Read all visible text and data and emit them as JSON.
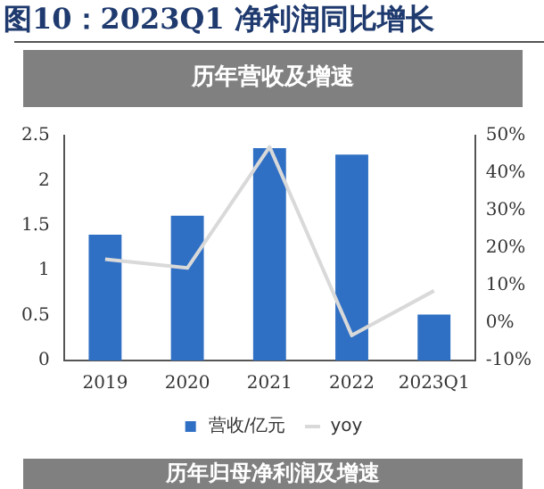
{
  "chart_data": {
    "type": "bar",
    "title": "图10：2023Q1 净利润同比增长",
    "subtitle": "历年营收及增速",
    "categories": [
      "2019",
      "2020",
      "2021",
      "2022",
      "2023Q1"
    ],
    "series": [
      {
        "name": "营收/亿元",
        "color": "#3070c4",
        "values": [
          1.4,
          1.61,
          2.36,
          2.29,
          0.51
        ]
      },
      {
        "name": "yoy",
        "type": "line",
        "axis": "y2",
        "color": "#d9d9d9",
        "values": [
          17,
          14.7,
          47,
          -3.3,
          8.6
        ]
      }
    ],
    "ylim": [
      0,
      2.5
    ],
    "yticks": [
      0,
      0.5,
      1,
      1.5,
      2,
      2.5
    ],
    "y2lim": [
      -10,
      50
    ],
    "y2ticks": [
      {
        "value": -10,
        "label": "-10%"
      },
      {
        "value": 0,
        "label": "0%"
      },
      {
        "value": 10,
        "label": "10%"
      },
      {
        "value": 20,
        "label": "20%"
      },
      {
        "value": 30,
        "label": "30%"
      },
      {
        "value": 40,
        "label": "40%"
      },
      {
        "value": 50,
        "label": "50%"
      }
    ],
    "grid": false,
    "legend": "bottom",
    "marker": "none",
    "line_style": "solid",
    "annotations": [
      "历年归母净利润及增速"
    ]
  }
}
